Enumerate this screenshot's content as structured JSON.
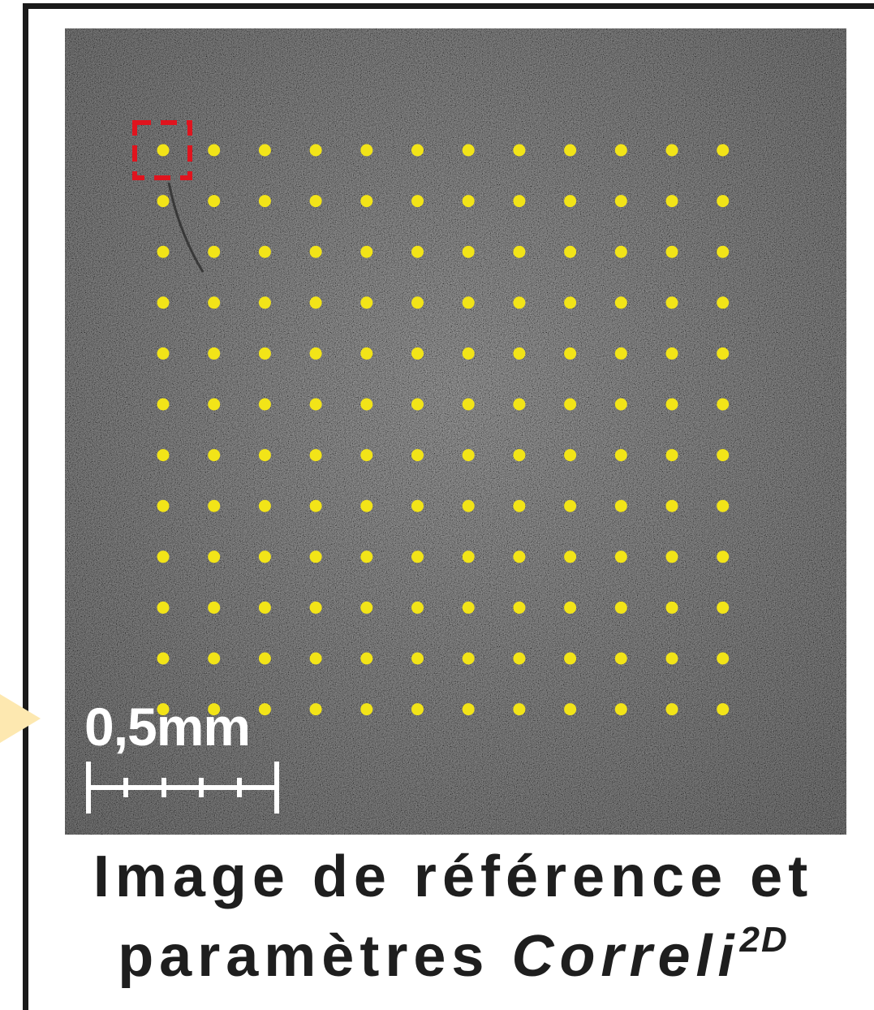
{
  "scale_bar": {
    "label": "0,5mm"
  },
  "caption": {
    "line1": "Image de référence et",
    "line2_plain": "paramètres",
    "line2_italic": "Correli",
    "line2_superscript": "2D"
  },
  "grid": {
    "rows": 12,
    "cols": 12,
    "dot_color": "#f2e418",
    "highlight_color": "#e0141e"
  },
  "colors": {
    "speckle_base": "#4e4e4e",
    "arrow": "#fde8b0",
    "frame": "#1a1a1a"
  }
}
